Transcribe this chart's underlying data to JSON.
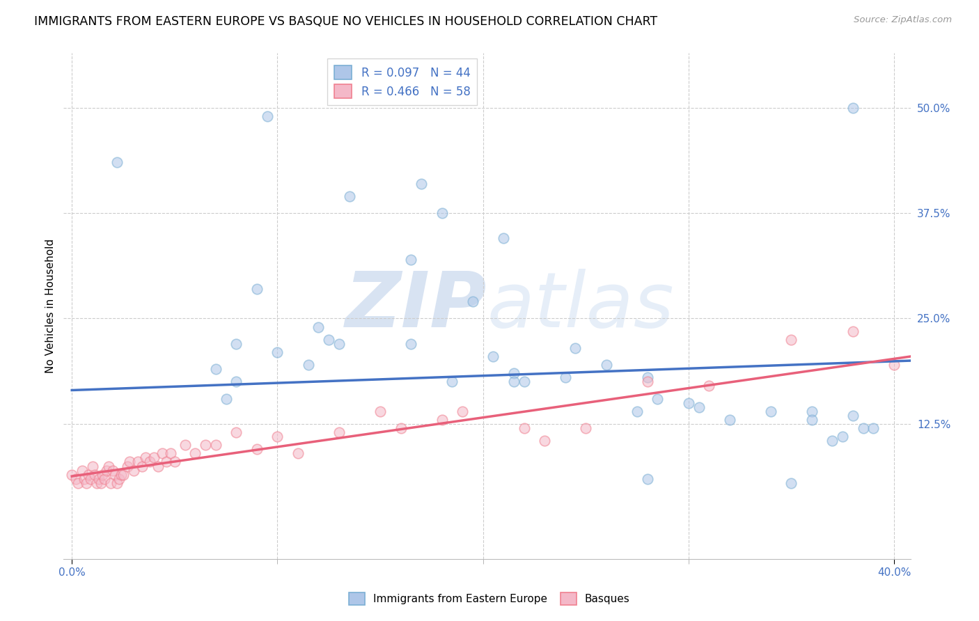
{
  "title": "IMMIGRANTS FROM EASTERN EUROPE VS BASQUE NO VEHICLES IN HOUSEHOLD CORRELATION CHART",
  "source": "Source: ZipAtlas.com",
  "ylabel": "No Vehicles in Household",
  "yticks": [
    "50.0%",
    "37.5%",
    "25.0%",
    "12.5%"
  ],
  "ytick_vals": [
    0.5,
    0.375,
    0.25,
    0.125
  ],
  "xlim": [
    -0.004,
    0.408
  ],
  "ylim": [
    -0.035,
    0.565
  ],
  "blue_scatter_x": [
    0.022,
    0.095,
    0.135,
    0.17,
    0.18,
    0.21,
    0.165,
    0.09,
    0.08,
    0.1,
    0.125,
    0.08,
    0.075,
    0.07,
    0.12,
    0.13,
    0.115,
    0.165,
    0.185,
    0.205,
    0.215,
    0.195,
    0.245,
    0.26,
    0.215,
    0.22,
    0.24,
    0.28,
    0.285,
    0.275,
    0.3,
    0.305,
    0.32,
    0.34,
    0.36,
    0.37,
    0.375,
    0.38,
    0.385,
    0.39,
    0.35,
    0.28,
    0.36,
    0.38
  ],
  "blue_scatter_y": [
    0.435,
    0.49,
    0.395,
    0.41,
    0.375,
    0.345,
    0.32,
    0.285,
    0.22,
    0.21,
    0.225,
    0.175,
    0.155,
    0.19,
    0.24,
    0.22,
    0.195,
    0.22,
    0.175,
    0.205,
    0.185,
    0.27,
    0.215,
    0.195,
    0.175,
    0.175,
    0.18,
    0.18,
    0.155,
    0.14,
    0.15,
    0.145,
    0.13,
    0.14,
    0.14,
    0.105,
    0.11,
    0.135,
    0.12,
    0.12,
    0.055,
    0.06,
    0.13,
    0.5
  ],
  "pink_scatter_x": [
    0.0,
    0.002,
    0.003,
    0.005,
    0.006,
    0.007,
    0.008,
    0.009,
    0.01,
    0.011,
    0.012,
    0.013,
    0.014,
    0.015,
    0.016,
    0.017,
    0.018,
    0.019,
    0.02,
    0.021,
    0.022,
    0.023,
    0.024,
    0.025,
    0.027,
    0.028,
    0.03,
    0.032,
    0.034,
    0.036,
    0.038,
    0.04,
    0.042,
    0.044,
    0.046,
    0.048,
    0.05,
    0.055,
    0.06,
    0.065,
    0.07,
    0.08,
    0.09,
    0.1,
    0.11,
    0.13,
    0.15,
    0.16,
    0.18,
    0.19,
    0.22,
    0.23,
    0.25,
    0.28,
    0.31,
    0.35,
    0.38,
    0.4
  ],
  "pink_scatter_y": [
    0.065,
    0.06,
    0.055,
    0.07,
    0.06,
    0.055,
    0.065,
    0.06,
    0.075,
    0.065,
    0.055,
    0.06,
    0.055,
    0.065,
    0.06,
    0.07,
    0.075,
    0.055,
    0.07,
    0.065,
    0.055,
    0.06,
    0.065,
    0.065,
    0.075,
    0.08,
    0.07,
    0.08,
    0.075,
    0.085,
    0.08,
    0.085,
    0.075,
    0.09,
    0.08,
    0.09,
    0.08,
    0.1,
    0.09,
    0.1,
    0.1,
    0.115,
    0.095,
    0.11,
    0.09,
    0.115,
    0.14,
    0.12,
    0.13,
    0.14,
    0.12,
    0.105,
    0.12,
    0.175,
    0.17,
    0.225,
    0.235,
    0.195
  ],
  "blue_line_x": [
    0.0,
    0.408
  ],
  "blue_line_y": [
    0.165,
    0.2
  ],
  "pink_line_x": [
    0.0,
    0.408
  ],
  "pink_line_y": [
    0.063,
    0.205
  ],
  "blue_color": "#7bafd4",
  "pink_color": "#f08090",
  "blue_fill": "#aec6e8",
  "pink_fill": "#f4b8c8",
  "blue_line_color": "#4472c4",
  "pink_line_color": "#e8607a",
  "marker_size": 110,
  "marker_alpha": 0.55,
  "background_color": "#ffffff",
  "grid_color": "#cccccc",
  "title_fontsize": 12.5,
  "axis_label_fontsize": 11,
  "tick_fontsize": 11,
  "watermark_color": "#d0dff5",
  "watermark_alpha": 0.6
}
